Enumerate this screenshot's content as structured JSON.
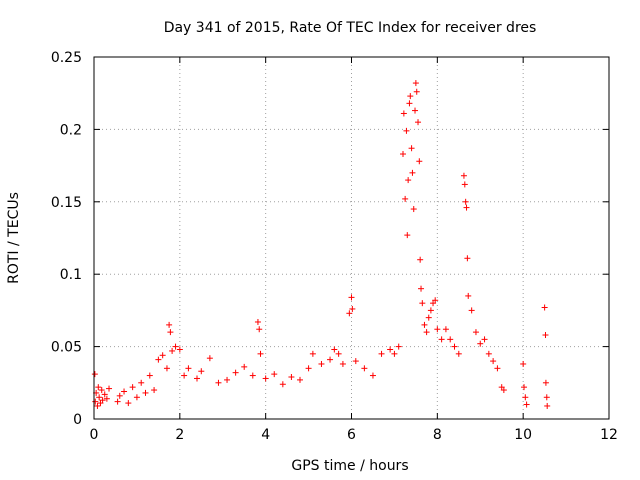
{
  "chart_data": {
    "type": "scatter",
    "title": "Day 341 of 2015, Rate Of TEC Index for receiver dres",
    "xlabel": "GPS time / hours",
    "ylabel": "ROTI / TECUs",
    "xlim": [
      0,
      12
    ],
    "ylim": [
      0,
      0.25
    ],
    "xticks": [
      0,
      2,
      4,
      6,
      8,
      10,
      12
    ],
    "yticks": [
      0,
      0.05,
      0.1,
      0.15,
      0.2,
      0.25
    ],
    "xtick_labels": [
      "0",
      "2",
      "4",
      "6",
      "8",
      "10",
      "12"
    ],
    "ytick_labels": [
      "0",
      "0.05",
      "0.1",
      "0.15",
      "0.2",
      "0.25"
    ],
    "grid": true,
    "marker": "+",
    "color": "#ff0000",
    "series": [
      {
        "name": "ROTI",
        "points": [
          [
            0.02,
            0.031
          ],
          [
            0.03,
            0.012
          ],
          [
            0.05,
            0.018
          ],
          [
            0.08,
            0.009
          ],
          [
            0.1,
            0.022
          ],
          [
            0.12,
            0.015
          ],
          [
            0.15,
            0.011
          ],
          [
            0.18,
            0.02
          ],
          [
            0.2,
            0.013
          ],
          [
            0.25,
            0.017
          ],
          [
            0.3,
            0.014
          ],
          [
            0.35,
            0.021
          ],
          [
            0.55,
            0.012
          ],
          [
            0.6,
            0.016
          ],
          [
            0.7,
            0.019
          ],
          [
            0.8,
            0.011
          ],
          [
            0.9,
            0.022
          ],
          [
            1.0,
            0.015
          ],
          [
            1.1,
            0.025
          ],
          [
            1.2,
            0.018
          ],
          [
            1.3,
            0.03
          ],
          [
            1.4,
            0.02
          ],
          [
            1.5,
            0.041
          ],
          [
            1.6,
            0.044
          ],
          [
            1.7,
            0.035
          ],
          [
            1.75,
            0.065
          ],
          [
            1.78,
            0.06
          ],
          [
            1.82,
            0.047
          ],
          [
            1.9,
            0.05
          ],
          [
            2.0,
            0.048
          ],
          [
            2.1,
            0.03
          ],
          [
            2.2,
            0.035
          ],
          [
            2.4,
            0.028
          ],
          [
            2.5,
            0.033
          ],
          [
            2.7,
            0.042
          ],
          [
            2.9,
            0.025
          ],
          [
            3.1,
            0.027
          ],
          [
            3.3,
            0.032
          ],
          [
            3.5,
            0.036
          ],
          [
            3.7,
            0.03
          ],
          [
            3.82,
            0.067
          ],
          [
            3.85,
            0.062
          ],
          [
            3.88,
            0.045
          ],
          [
            4.0,
            0.028
          ],
          [
            4.2,
            0.031
          ],
          [
            4.4,
            0.024
          ],
          [
            4.6,
            0.029
          ],
          [
            4.8,
            0.027
          ],
          [
            5.0,
            0.035
          ],
          [
            5.1,
            0.045
          ],
          [
            5.3,
            0.038
          ],
          [
            5.5,
            0.041
          ],
          [
            5.6,
            0.048
          ],
          [
            5.7,
            0.045
          ],
          [
            5.8,
            0.038
          ],
          [
            5.95,
            0.073
          ],
          [
            6.0,
            0.084
          ],
          [
            6.02,
            0.076
          ],
          [
            6.1,
            0.04
          ],
          [
            6.3,
            0.035
          ],
          [
            6.5,
            0.03
          ],
          [
            6.7,
            0.045
          ],
          [
            6.9,
            0.048
          ],
          [
            7.0,
            0.045
          ],
          [
            7.1,
            0.05
          ],
          [
            7.2,
            0.183
          ],
          [
            7.22,
            0.211
          ],
          [
            7.25,
            0.152
          ],
          [
            7.28,
            0.199
          ],
          [
            7.3,
            0.127
          ],
          [
            7.32,
            0.165
          ],
          [
            7.35,
            0.218
          ],
          [
            7.37,
            0.223
          ],
          [
            7.4,
            0.187
          ],
          [
            7.42,
            0.17
          ],
          [
            7.45,
            0.145
          ],
          [
            7.48,
            0.213
          ],
          [
            7.5,
            0.232
          ],
          [
            7.52,
            0.226
          ],
          [
            7.55,
            0.205
          ],
          [
            7.58,
            0.178
          ],
          [
            7.6,
            0.11
          ],
          [
            7.62,
            0.09
          ],
          [
            7.65,
            0.08
          ],
          [
            7.7,
            0.065
          ],
          [
            7.75,
            0.06
          ],
          [
            7.8,
            0.07
          ],
          [
            7.85,
            0.075
          ],
          [
            7.9,
            0.08
          ],
          [
            7.95,
            0.082
          ],
          [
            8.0,
            0.062
          ],
          [
            8.1,
            0.055
          ],
          [
            8.2,
            0.062
          ],
          [
            8.3,
            0.055
          ],
          [
            8.4,
            0.05
          ],
          [
            8.5,
            0.045
          ],
          [
            8.62,
            0.168
          ],
          [
            8.64,
            0.162
          ],
          [
            8.66,
            0.15
          ],
          [
            8.68,
            0.146
          ],
          [
            8.7,
            0.111
          ],
          [
            8.72,
            0.085
          ],
          [
            8.8,
            0.075
          ],
          [
            8.9,
            0.06
          ],
          [
            9.0,
            0.052
          ],
          [
            9.1,
            0.055
          ],
          [
            9.2,
            0.045
          ],
          [
            9.3,
            0.04
          ],
          [
            9.4,
            0.035
          ],
          [
            9.5,
            0.022
          ],
          [
            9.55,
            0.02
          ],
          [
            10.0,
            0.038
          ],
          [
            10.02,
            0.022
          ],
          [
            10.05,
            0.015
          ],
          [
            10.08,
            0.01
          ],
          [
            10.5,
            0.077
          ],
          [
            10.52,
            0.058
          ],
          [
            10.53,
            0.025
          ],
          [
            10.55,
            0.015
          ],
          [
            10.56,
            0.009
          ]
        ]
      }
    ]
  }
}
